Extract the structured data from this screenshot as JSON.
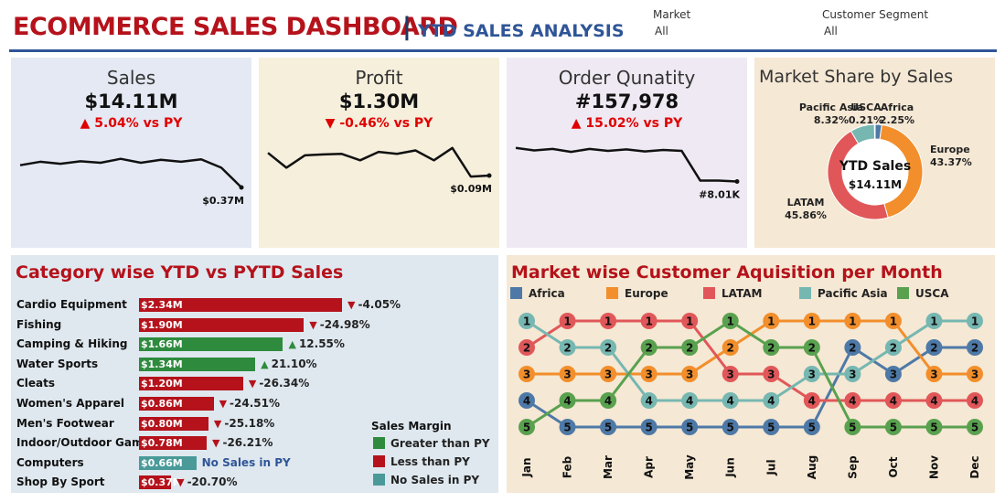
{
  "header": {
    "title": "ECOMMERCE SALES DASHBOARD",
    "separator": "|",
    "subtitle": "YTD SALES ANALYSIS",
    "filters": [
      {
        "label": "Market",
        "value": "All"
      },
      {
        "label": "Customer Segment",
        "value": "All"
      }
    ]
  },
  "kpis": [
    {
      "title": "Sales",
      "value": "$14.11M",
      "change": "5.04% vs PY",
      "direction": "up",
      "color": "#e00000",
      "last_label": "$0.37M",
      "spark": [
        0.55,
        0.48,
        0.52,
        0.47,
        0.5,
        0.42,
        0.5,
        0.44,
        0.48,
        0.43,
        0.6,
        1.0
      ]
    },
    {
      "title": "Profit",
      "value": "$1.30M",
      "change": "-0.46% vs PY",
      "direction": "down",
      "color": "#e00000",
      "last_label": "$0.09M",
      "spark": [
        0.3,
        0.6,
        0.35,
        0.33,
        0.32,
        0.45,
        0.28,
        0.32,
        0.25,
        0.45,
        0.2,
        0.78,
        0.76
      ]
    },
    {
      "title": "Order Qunatity",
      "value": "#157,978",
      "change": "15.02% vs PY",
      "direction": "up",
      "color": "#e00000",
      "last_label": "#8.01K",
      "spark": [
        0.2,
        0.25,
        0.22,
        0.28,
        0.22,
        0.26,
        0.23,
        0.27,
        0.24,
        0.26,
        0.86,
        0.86,
        0.88
      ]
    }
  ],
  "market_share": {
    "title": "Market Share by Sales",
    "center_label": "YTD Sales",
    "center_value": "$14.11M"
  },
  "category": {
    "title": "Category wise YTD vs PYTD Sales",
    "legend_title": "Sales Margin",
    "legend": [
      {
        "label": "Greater than PY",
        "color": "#2e8b3e"
      },
      {
        "label": "Less than PY",
        "color": "#b5121b"
      },
      {
        "label": "No Sales in PY",
        "color": "#4a9a9a"
      }
    ]
  },
  "acquisition": {
    "title": "Market wise Customer Aquisition per Month"
  },
  "chart_data": [
    {
      "type": "pie",
      "title": "Market Share by Sales",
      "categories": [
        "Africa",
        "Europe",
        "LATAM",
        "Pacific Asia",
        "USCA"
      ],
      "values": [
        2.25,
        43.37,
        45.86,
        8.32,
        0.21
      ],
      "labels": [
        "2.25%",
        "43.37%",
        "45.86%",
        "8.32%",
        "0.21%"
      ],
      "colors": [
        "#4e79a7",
        "#f28e2b",
        "#e15759",
        "#76b7b2",
        "#59a14f"
      ]
    },
    {
      "type": "bar",
      "title": "Category wise YTD vs PYTD Sales",
      "categories": [
        "Cardio Equipment",
        "Fishing",
        "Camping & Hiking",
        "Water Sports",
        "Cleats",
        "Women's Apparel",
        "Men's Footwear",
        "Indoor/Outdoor Games",
        "Computers",
        "Shop By Sport"
      ],
      "values": [
        2.34,
        1.9,
        1.66,
        1.34,
        1.2,
        0.86,
        0.8,
        0.78,
        0.66,
        0.37
      ],
      "value_labels": [
        "$2.34M",
        "$1.90M",
        "$1.66M",
        "$1.34M",
        "$1.20M",
        "$0.86M",
        "$0.80M",
        "$0.78M",
        "$0.66M",
        "$0.37M"
      ],
      "change_labels": [
        "-4.05%",
        "-24.98%",
        "12.55%",
        "21.10%",
        "-26.34%",
        "-24.51%",
        "-25.18%",
        "-26.21%",
        "No Sales in PY",
        "-20.70%"
      ],
      "margin": [
        "less",
        "less",
        "greater",
        "greater",
        "less",
        "less",
        "less",
        "less",
        "none",
        "less"
      ]
    },
    {
      "type": "line",
      "title": "Market wise Customer Aquisition per Month",
      "x": [
        "Jan",
        "Feb",
        "Mar",
        "Apr",
        "May",
        "Jun",
        "Jul",
        "Aug",
        "Sep",
        "Oct",
        "Nov",
        "Dec"
      ],
      "ylabel": "",
      "series": [
        {
          "name": "Africa",
          "color": "#4e79a7",
          "values": [
            4,
            5,
            5,
            5,
            5,
            5,
            5,
            5,
            2,
            3,
            2,
            2
          ]
        },
        {
          "name": "Europe",
          "color": "#f28e2b",
          "values": [
            3,
            3,
            3,
            3,
            3,
            2,
            1,
            1,
            1,
            1,
            3,
            3
          ]
        },
        {
          "name": "LATAM",
          "color": "#e15759",
          "values": [
            2,
            1,
            1,
            1,
            1,
            3,
            3,
            4,
            4,
            4,
            4,
            4
          ]
        },
        {
          "name": "Pacific Asia",
          "color": "#76b7b2",
          "values": [
            1,
            2,
            2,
            4,
            4,
            4,
            4,
            3,
            3,
            2,
            1,
            1
          ]
        },
        {
          "name": "USCA",
          "color": "#59a14f",
          "values": [
            5,
            4,
            4,
            2,
            2,
            1,
            2,
            2,
            5,
            5,
            5,
            5
          ]
        }
      ]
    }
  ]
}
